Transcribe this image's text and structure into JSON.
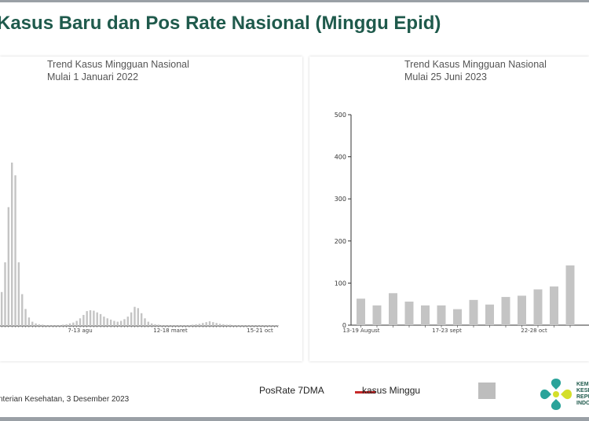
{
  "page_title": "Kasus Baru dan Pos Rate Nasional (Minggu Epid)",
  "footer": "nterian Kesehatan, 3 Desember 2023",
  "legend": {
    "posrate_label": "PosRate 7DMA",
    "kasus_label": "kasus Minggu",
    "posrate_color": "#c62828",
    "kasus_color": "#bdbdbd"
  },
  "logo": {
    "lines": [
      "KEM",
      "KESE",
      "REPU",
      "INDO"
    ]
  },
  "chart_data": [
    {
      "type": "bar",
      "title": "Trend Kasus Mingguan Nasional",
      "subtitle": "Mulai 1 Januari 2022",
      "x_tick_labels": [
        "7-13 agu",
        "12-18 maret",
        "15-21 oct"
      ],
      "values": [
        80,
        150,
        280,
        385,
        355,
        150,
        75,
        40,
        20,
        10,
        6,
        4,
        3,
        2,
        2,
        2,
        2,
        2,
        3,
        4,
        6,
        8,
        12,
        18,
        26,
        35,
        37,
        36,
        32,
        28,
        22,
        18,
        15,
        12,
        10,
        12,
        16,
        22,
        32,
        45,
        42,
        30,
        18,
        10,
        6,
        4,
        3,
        2,
        2,
        2,
        2,
        2,
        2,
        2,
        2,
        2,
        3,
        4,
        5,
        7,
        9,
        11,
        9,
        7,
        5,
        4,
        3,
        3,
        2,
        2,
        2,
        2,
        2,
        2,
        2,
        2,
        2,
        2,
        2,
        2,
        2,
        2
      ]
    },
    {
      "type": "bar",
      "title": "Trend Kasus Mingguan Nasional",
      "subtitle": "Mulai 25 Juni 2023",
      "ylim": [
        0,
        500
      ],
      "y_ticks": [
        "0",
        "100",
        "200",
        "300",
        "400",
        "500"
      ],
      "x_tick_labels": [
        "13-19 August",
        "17-23 sept",
        "22-28 oct"
      ],
      "values": [
        63,
        47,
        76,
        56,
        47,
        47,
        38,
        60,
        49,
        67,
        70,
        85,
        92,
        142
      ]
    }
  ]
}
